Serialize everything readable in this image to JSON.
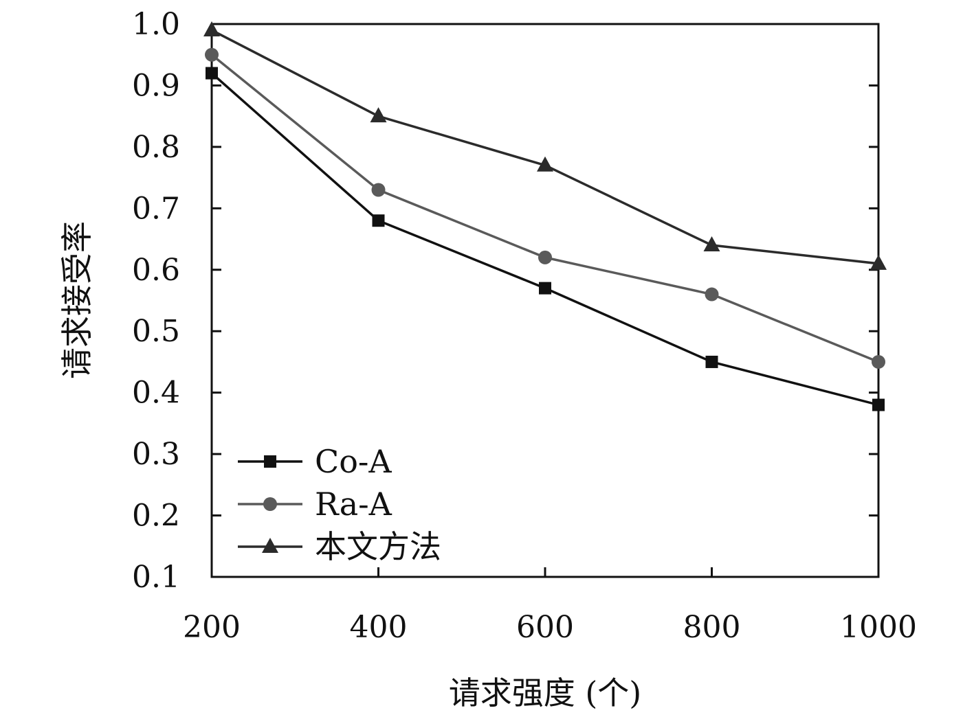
{
  "chart_data": {
    "type": "line",
    "title": "",
    "xlabel": "请求强度 (个)",
    "ylabel": "请求接受率",
    "x": [
      200,
      400,
      600,
      800,
      1000
    ],
    "x_ticks": [
      "200",
      "400",
      "600",
      "800",
      "1000"
    ],
    "y_ticks": [
      "0.1",
      "0.2",
      "0.3",
      "0.4",
      "0.5",
      "0.6",
      "0.7",
      "0.8",
      "0.9",
      "1.0"
    ],
    "xlim": [
      200,
      1000
    ],
    "ylim": [
      0.1,
      1.0
    ],
    "grid": false,
    "legend_position": "bottom-left",
    "series": [
      {
        "name": "Co-A",
        "values": [
          0.92,
          0.68,
          0.57,
          0.45,
          0.38
        ],
        "marker": "square",
        "color": "#111111"
      },
      {
        "name": "Ra-A",
        "values": [
          0.95,
          0.73,
          0.62,
          0.56,
          0.45
        ],
        "marker": "circle",
        "color": "#5a5a5a"
      },
      {
        "name": "本文方法",
        "values": [
          0.99,
          0.85,
          0.77,
          0.64,
          0.61
        ],
        "marker": "triangle",
        "color": "#2b2b2b"
      }
    ]
  }
}
